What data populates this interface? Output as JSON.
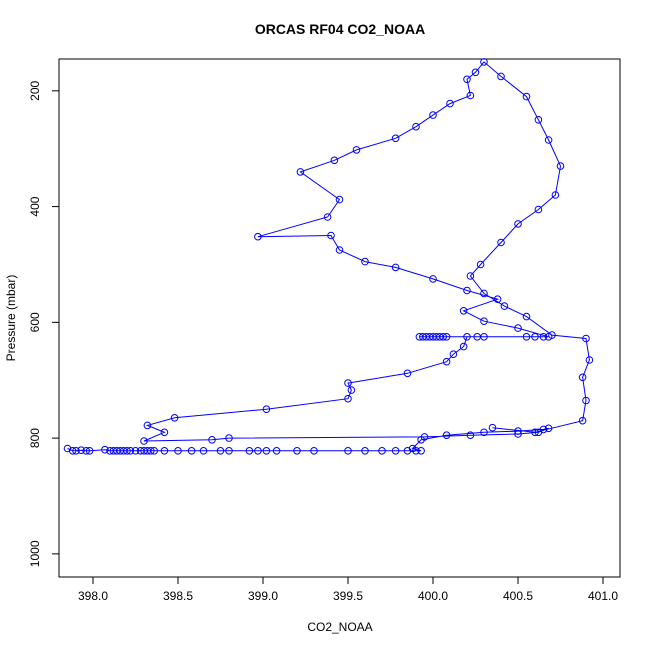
{
  "chart_data": {
    "type": "line",
    "title": "ORCAS RF04 CO2_NOAA",
    "xlabel": "CO2_NOAA",
    "ylabel": "Pressure (mbar)",
    "xlim": [
      397.8,
      401.1
    ],
    "ylim": [
      1040,
      145
    ],
    "y_reversed": true,
    "x_ticks": [
      398.0,
      398.5,
      399.0,
      399.5,
      400.0,
      400.5,
      401.0
    ],
    "x_tick_labels": [
      "398.0",
      "398.5",
      "399.0",
      "399.5",
      "400.0",
      "400.5",
      "401.0"
    ],
    "y_ticks": [
      200,
      400,
      600,
      800,
      1000
    ],
    "y_tick_labels": [
      "200",
      "400",
      "600",
      "800",
      "1000"
    ],
    "grid": false,
    "series": [
      {
        "color": "#0000ff",
        "marker": "open-circle",
        "points": [
          [
            397.85,
            818
          ],
          [
            397.88,
            822
          ],
          [
            397.9,
            822
          ],
          [
            397.93,
            821
          ],
          [
            397.96,
            822
          ],
          [
            397.98,
            822
          ],
          [
            398.07,
            820
          ],
          [
            398.1,
            822
          ],
          [
            398.12,
            822
          ],
          [
            398.14,
            822
          ],
          [
            398.16,
            822
          ],
          [
            398.18,
            822
          ],
          [
            398.2,
            822
          ],
          [
            398.22,
            822
          ],
          [
            398.25,
            822
          ],
          [
            398.28,
            822
          ],
          [
            398.3,
            822
          ],
          [
            398.32,
            822
          ],
          [
            398.34,
            822
          ],
          [
            398.36,
            822
          ],
          [
            398.42,
            822
          ],
          [
            398.5,
            822
          ],
          [
            398.58,
            822
          ],
          [
            398.65,
            822
          ],
          [
            398.75,
            822
          ],
          [
            398.8,
            822
          ],
          [
            398.92,
            822
          ],
          [
            398.97,
            822
          ],
          [
            399.02,
            822
          ],
          [
            399.08,
            822
          ],
          [
            399.2,
            822
          ],
          [
            399.3,
            822
          ],
          [
            399.5,
            822
          ],
          [
            399.6,
            822
          ],
          [
            399.7,
            822
          ],
          [
            399.78,
            822
          ],
          [
            399.85,
            822
          ],
          [
            399.9,
            822
          ],
          [
            399.93,
            822
          ],
          [
            399.88,
            818
          ],
          [
            399.93,
            803
          ],
          [
            400.08,
            795
          ],
          [
            400.3,
            790
          ],
          [
            400.5,
            788
          ],
          [
            400.65,
            785
          ],
          [
            400.68,
            783
          ],
          [
            400.62,
            790
          ],
          [
            400.5,
            793
          ],
          [
            400.22,
            795
          ],
          [
            399.95,
            798
          ],
          [
            398.8,
            800
          ],
          [
            398.7,
            803
          ],
          [
            398.3,
            805
          ],
          [
            398.42,
            790
          ],
          [
            398.32,
            778
          ],
          [
            398.48,
            765
          ],
          [
            399.02,
            750
          ],
          [
            399.5,
            732
          ],
          [
            399.52,
            717
          ],
          [
            399.5,
            705
          ],
          [
            399.85,
            688
          ],
          [
            400.08,
            668
          ],
          [
            400.12,
            655
          ],
          [
            400.18,
            642
          ],
          [
            400.2,
            625
          ],
          [
            399.92,
            625
          ],
          [
            399.94,
            625
          ],
          [
            399.96,
            625
          ],
          [
            399.98,
            625
          ],
          [
            400.0,
            625
          ],
          [
            400.02,
            625
          ],
          [
            400.04,
            625
          ],
          [
            400.06,
            625
          ],
          [
            400.08,
            625
          ],
          [
            400.26,
            625
          ],
          [
            400.3,
            625
          ],
          [
            400.55,
            625
          ],
          [
            400.6,
            625
          ],
          [
            400.65,
            625
          ],
          [
            400.68,
            625
          ],
          [
            400.5,
            610
          ],
          [
            400.3,
            598
          ],
          [
            400.18,
            580
          ],
          [
            400.38,
            560
          ],
          [
            400.2,
            545
          ],
          [
            400.0,
            525
          ],
          [
            399.78,
            505
          ],
          [
            399.6,
            495
          ],
          [
            399.45,
            475
          ],
          [
            399.4,
            450
          ],
          [
            398.97,
            452
          ],
          [
            399.38,
            418
          ],
          [
            399.45,
            388
          ],
          [
            399.22,
            340
          ],
          [
            399.42,
            320
          ],
          [
            399.55,
            302
          ],
          [
            399.78,
            282
          ],
          [
            399.9,
            262
          ],
          [
            400.0,
            242
          ],
          [
            400.1,
            222
          ],
          [
            400.22,
            208
          ],
          [
            400.2,
            180
          ],
          [
            400.25,
            168
          ],
          [
            400.3,
            150
          ],
          [
            400.4,
            175
          ],
          [
            400.55,
            210
          ],
          [
            400.62,
            250
          ],
          [
            400.68,
            285
          ],
          [
            400.75,
            330
          ],
          [
            400.72,
            380
          ],
          [
            400.62,
            405
          ],
          [
            400.5,
            430
          ],
          [
            400.4,
            462
          ],
          [
            400.28,
            500
          ],
          [
            400.22,
            520
          ],
          [
            400.3,
            550
          ],
          [
            400.42,
            572
          ],
          [
            400.55,
            590
          ],
          [
            400.7,
            622
          ],
          [
            400.9,
            628
          ],
          [
            400.92,
            665
          ],
          [
            400.88,
            695
          ],
          [
            400.9,
            735
          ],
          [
            400.88,
            770
          ],
          [
            400.6,
            790
          ],
          [
            400.35,
            782
          ]
        ]
      }
    ]
  }
}
